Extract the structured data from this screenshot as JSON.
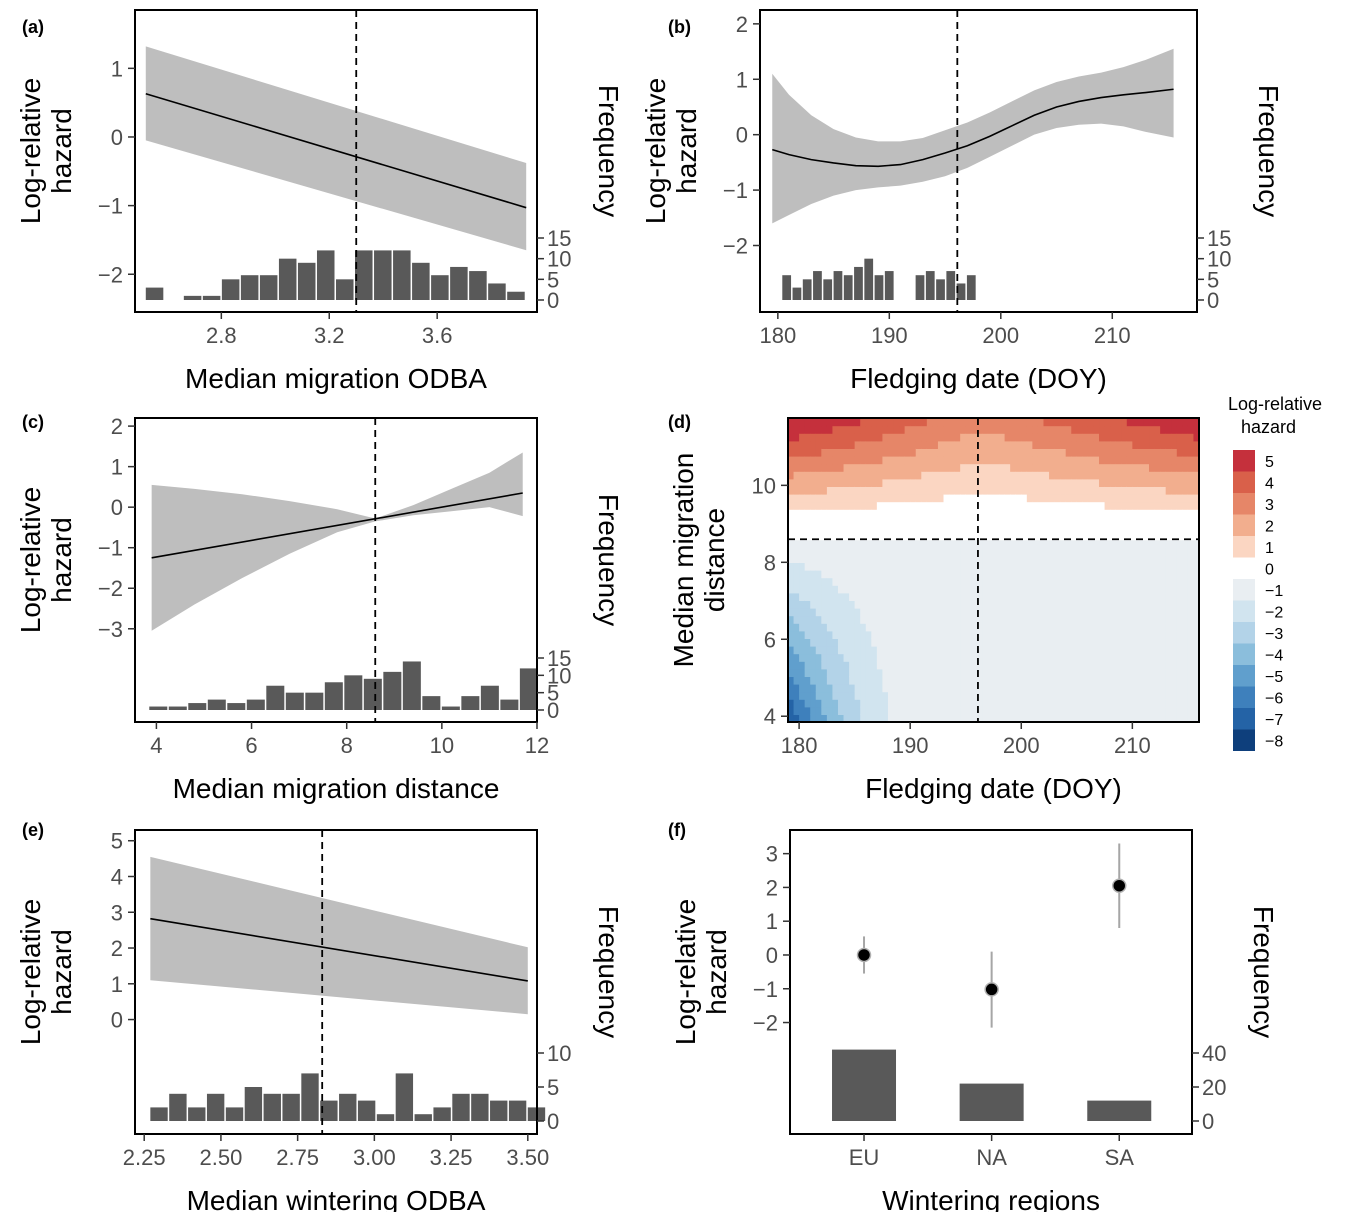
{
  "chart_data": [
    {
      "panel": "(a)",
      "type": "line",
      "xlabel": "Median migration ODBA",
      "ylabel": [
        "Log-relative",
        "hazard"
      ],
      "y2label": "Frequency",
      "xticks": [
        "2.8",
        "3.2",
        "3.6"
      ],
      "xtick_values": [
        2.8,
        3.2,
        3.6
      ],
      "yticks": [
        "−2",
        "−1",
        "0",
        "1"
      ],
      "ytick_values": [
        -2,
        -1,
        0,
        1
      ],
      "freq_ticks": [
        "0",
        "5",
        "10",
        "15"
      ],
      "freq_tick_values": [
        0,
        5,
        10,
        15
      ],
      "xlim": [
        2.48,
        3.97
      ],
      "ylim": [
        -2.55,
        1.85
      ],
      "line": {
        "x": [
          2.52,
          3.93
        ],
        "y": [
          0.63,
          -1.03
        ]
      },
      "band": {
        "x": [
          2.52,
          3.93
        ],
        "lower": [
          -0.05,
          -1.65
        ],
        "upper": [
          1.32,
          -0.38
        ]
      },
      "vline": 3.3,
      "hist": {
        "start": 2.52,
        "width": 0.0705,
        "counts": [
          3,
          0,
          1,
          1,
          5,
          6,
          6,
          10,
          9,
          12,
          5,
          12,
          12,
          12,
          9,
          6,
          8,
          7,
          4,
          2
        ]
      }
    },
    {
      "panel": "(b)",
      "type": "line",
      "xlabel": "Fledging date (DOY)",
      "ylabel": [
        "Log-relative",
        "hazard"
      ],
      "y2label": "Frequency",
      "xticks": [
        "180",
        "190",
        "200",
        "210"
      ],
      "xtick_values": [
        180,
        190,
        200,
        210
      ],
      "yticks": [
        "−2",
        "−1",
        "0",
        "1",
        "2"
      ],
      "ytick_values": [
        -2,
        -1,
        0,
        1,
        2
      ],
      "freq_ticks": [
        "0",
        "5",
        "10",
        "15"
      ],
      "freq_tick_values": [
        0,
        5,
        10,
        15
      ],
      "xlim": [
        178.4,
        217.6
      ],
      "ylim": [
        -3.2,
        2.25
      ],
      "line": {
        "x": [
          179.5,
          181,
          183,
          185,
          187,
          189,
          191,
          193,
          195,
          197,
          199,
          201,
          203,
          205,
          207,
          209,
          211,
          213,
          215.5
        ],
        "y": [
          -0.27,
          -0.36,
          -0.45,
          -0.51,
          -0.56,
          -0.57,
          -0.54,
          -0.45,
          -0.33,
          -0.2,
          -0.03,
          0.16,
          0.35,
          0.5,
          0.6,
          0.67,
          0.72,
          0.76,
          0.82
        ]
      },
      "band": {
        "x": [
          179.5,
          181,
          183,
          185,
          187,
          189,
          191,
          193,
          195,
          197,
          199,
          201,
          203,
          205,
          207,
          209,
          211,
          213,
          215.5
        ],
        "lower": [
          -1.6,
          -1.45,
          -1.25,
          -1.1,
          -1.0,
          -0.95,
          -0.92,
          -0.85,
          -0.75,
          -0.6,
          -0.4,
          -0.2,
          0.0,
          0.12,
          0.18,
          0.2,
          0.15,
          0.05,
          -0.05
        ],
        "upper": [
          1.1,
          0.72,
          0.35,
          0.1,
          -0.05,
          -0.12,
          -0.12,
          -0.06,
          0.08,
          0.22,
          0.4,
          0.6,
          0.8,
          0.95,
          1.05,
          1.12,
          1.22,
          1.35,
          1.55
        ]
      },
      "vline": 196.1,
      "hist": {
        "start": 180.4,
        "width": 0.92,
        "counts": [
          6,
          3,
          5,
          7,
          5,
          7,
          6,
          8,
          10,
          6,
          7,
          0,
          0,
          6,
          7,
          5,
          7,
          4,
          6
        ]
      }
    },
    {
      "panel": "(c)",
      "type": "line",
      "xlabel": "Median migration distance",
      "ylabel": [
        "Log-relative",
        "hazard"
      ],
      "y2label": "Frequency",
      "xticks": [
        "4",
        "6",
        "8",
        "10",
        "12"
      ],
      "xtick_values": [
        4,
        6,
        8,
        10,
        12
      ],
      "yticks": [
        "−3",
        "−2",
        "−1",
        "0",
        "1",
        "2"
      ],
      "ytick_values": [
        -3,
        -2,
        -1,
        0,
        1,
        2
      ],
      "freq_ticks": [
        "0",
        "5",
        "10",
        "15"
      ],
      "freq_tick_values": [
        0,
        5,
        10,
        15
      ],
      "xlim": [
        3.55,
        12.0
      ],
      "ylim": [
        -5.3,
        2.2
      ],
      "line": {
        "x": [
          3.9,
          11.7
        ],
        "y": [
          -1.25,
          0.35
        ]
      },
      "band": {
        "x": [
          3.9,
          4.8,
          5.8,
          6.8,
          7.8,
          8.6,
          9.4,
          10.2,
          11.0,
          11.7
        ],
        "lower": [
          -3.05,
          -2.4,
          -1.75,
          -1.15,
          -0.62,
          -0.35,
          -0.2,
          -0.1,
          0.0,
          -0.22
        ],
        "upper": [
          0.55,
          0.45,
          0.32,
          0.15,
          -0.05,
          -0.28,
          0.05,
          0.45,
          0.85,
          1.35
        ]
      },
      "vline": 8.6,
      "hist": {
        "start": 3.85,
        "width": 0.41,
        "counts": [
          1,
          1,
          2,
          3,
          2,
          3,
          7,
          5,
          5,
          8,
          10,
          9,
          11,
          14,
          4,
          1,
          4,
          7,
          3,
          12
        ]
      }
    },
    {
      "panel": "(d)",
      "type": "heatmap",
      "xlabel": "Fledging date (DOY)",
      "ylabel": [
        "Median migration",
        "distance"
      ],
      "xticks": [
        "180",
        "190",
        "200",
        "210"
      ],
      "xtick_values": [
        180,
        190,
        200,
        210
      ],
      "yticks": [
        "4",
        "6",
        "8",
        "10"
      ],
      "ytick_values": [
        4,
        6,
        8,
        10
      ],
      "xlim": [
        179.0,
        216.0
      ],
      "ylim": [
        3.85,
        11.75
      ],
      "vline": 196.1,
      "hline": 8.6,
      "legend_title": [
        "Log-relative",
        "hazard"
      ],
      "legend": [
        {
          "label": "5",
          "color": "#c5303c"
        },
        {
          "label": "4",
          "color": "#d9604a"
        },
        {
          "label": "3",
          "color": "#e68668"
        },
        {
          "label": "2",
          "color": "#f2ae8e"
        },
        {
          "label": "1",
          "color": "#fbd6c2"
        },
        {
          "label": "0",
          "color": "#ffffff"
        },
        {
          "label": "−1",
          "color": "#e9eef2"
        },
        {
          "label": "−2",
          "color": "#d1e4ef"
        },
        {
          "label": "−3",
          "color": "#b3d3e8"
        },
        {
          "label": "−4",
          "color": "#8bbedc"
        },
        {
          "label": "−5",
          "color": "#609fcd"
        },
        {
          "label": "−6",
          "color": "#3e80bc"
        },
        {
          "label": "−7",
          "color": "#2463a6"
        },
        {
          "label": "−8",
          "color": "#0e3f7c"
        }
      ]
    },
    {
      "panel": "(e)",
      "type": "line",
      "xlabel": "Median wintering ODBA",
      "ylabel": [
        "Log-relative",
        "hazard"
      ],
      "y2label": "Frequency",
      "xticks": [
        "2.25",
        "2.50",
        "2.75",
        "3.00",
        "3.25",
        "3.50"
      ],
      "xtick_values": [
        2.25,
        2.5,
        2.75,
        3.0,
        3.25,
        3.5
      ],
      "yticks": [
        "0",
        "1",
        "2",
        "3",
        "4",
        "5"
      ],
      "ytick_values": [
        0,
        1,
        2,
        3,
        4,
        5
      ],
      "freq_ticks": [
        "0",
        "5",
        "10"
      ],
      "freq_tick_values": [
        0,
        5,
        10
      ],
      "xlim": [
        2.22,
        3.53
      ],
      "ylim": [
        -3.2,
        5.3
      ],
      "line": {
        "x": [
          2.27,
          3.5
        ],
        "y": [
          2.82,
          1.08
        ]
      },
      "band": {
        "x": [
          2.27,
          3.5
        ],
        "lower": [
          1.1,
          0.15
        ],
        "upper": [
          4.55,
          2.02
        ]
      },
      "vline": 2.83,
      "hist": {
        "start": 2.27,
        "width": 0.0615,
        "counts": [
          2,
          4,
          2,
          4,
          2,
          5,
          4,
          4,
          7,
          3,
          4,
          3,
          1,
          7,
          1,
          2,
          4,
          4,
          3,
          3,
          2
        ]
      }
    },
    {
      "panel": "(f)",
      "type": "scatter",
      "xlabel": "Wintering regions",
      "ylabel": [
        "Log-relative",
        "hazard"
      ],
      "y2label": "Frequency",
      "categories": [
        "EU",
        "NA",
        "SA"
      ],
      "yticks": [
        "−2",
        "−1",
        "0",
        "1",
        "2",
        "3"
      ],
      "ytick_values": [
        -2,
        -1,
        0,
        1,
        2,
        3
      ],
      "freq_ticks": [
        "0",
        "20",
        "40"
      ],
      "freq_tick_values": [
        0,
        20,
        40
      ],
      "ylim": [
        -5.3,
        3.7
      ],
      "points": [
        {
          "category": "EU",
          "estimate": 0.0,
          "lower": -0.55,
          "upper": 0.55
        },
        {
          "category": "NA",
          "estimate": -1.02,
          "lower": -2.15,
          "upper": 0.1
        },
        {
          "category": "SA",
          "estimate": 2.05,
          "lower": 0.8,
          "upper": 3.3
        }
      ],
      "counts": [
        42,
        22,
        12
      ]
    }
  ]
}
